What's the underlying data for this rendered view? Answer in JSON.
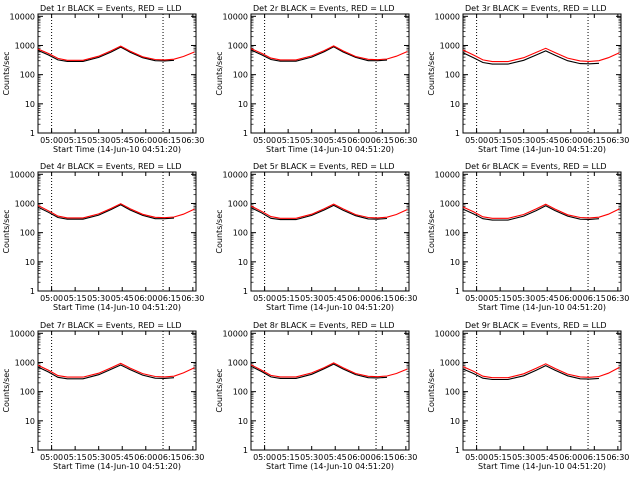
{
  "chart_data": [
    {
      "type": "line",
      "title": "Det 1r BLACK = Events, RED = LLD",
      "xlabel": "Start Time (14-Jun-10 04:51:20)",
      "ylabel": "Counts/sec",
      "yscale": "log",
      "ylim": [
        1,
        12000
      ],
      "xlim": [
        "04:51:20",
        "06:32:00"
      ],
      "x_ticks": [
        "05:00",
        "05:15",
        "05:30",
        "05:45",
        "06:00",
        "06:15",
        "06:30"
      ],
      "y_ticks": [
        "1",
        "10",
        "100",
        "1000",
        "10000"
      ],
      "vlines_dotted": [
        "05:00",
        "06:11"
      ],
      "x": [
        "04:51:20",
        "04:58:00",
        "05:04:00",
        "05:10:00",
        "05:20:00",
        "05:30:00",
        "05:38:00",
        "05:44:00",
        "05:50:00",
        "05:58:00",
        "06:06:00",
        "06:12:00",
        "06:18:00",
        "06:24:00",
        "06:31:00"
      ],
      "series": [
        {
          "name": "Events",
          "color": "#000000",
          "values": [
            680,
            470,
            320,
            285,
            285,
            390,
            600,
            880,
            590,
            380,
            300,
            295,
            310,
            null,
            null
          ]
        },
        {
          "name": "LLD",
          "color": "#ff0000",
          "values": [
            760,
            530,
            360,
            310,
            310,
            430,
            660,
            950,
            640,
            410,
            330,
            320,
            340,
            420,
            600
          ]
        }
      ]
    },
    {
      "type": "line",
      "title": "Det 2r BLACK = Events, RED = LLD",
      "xlabel": "Start Time (14-Jun-10 04:51:20)",
      "ylabel": "Counts/sec",
      "yscale": "log",
      "ylim": [
        1,
        12000
      ],
      "xlim": [
        "04:51:20",
        "06:32:00"
      ],
      "x_ticks": [
        "05:00",
        "05:15",
        "05:30",
        "05:45",
        "06:00",
        "06:15",
        "06:30"
      ],
      "y_ticks": [
        "1",
        "10",
        "100",
        "1000",
        "10000"
      ],
      "vlines_dotted": [
        "05:00",
        "06:11"
      ],
      "x": [
        "04:51:20",
        "04:58:00",
        "05:04:00",
        "05:10:00",
        "05:20:00",
        "05:30:00",
        "05:38:00",
        "05:44:00",
        "05:50:00",
        "05:58:00",
        "06:06:00",
        "06:12:00",
        "06:18:00",
        "06:24:00",
        "06:31:00"
      ],
      "series": [
        {
          "name": "Events",
          "color": "#000000",
          "values": [
            700,
            480,
            330,
            290,
            290,
            400,
            610,
            900,
            600,
            390,
            300,
            300,
            315,
            null,
            null
          ]
        },
        {
          "name": "LLD",
          "color": "#ff0000",
          "values": [
            780,
            540,
            370,
            320,
            320,
            440,
            670,
            970,
            650,
            420,
            335,
            325,
            345,
            430,
            620
          ]
        }
      ]
    },
    {
      "type": "line",
      "title": "Det 3r BLACK = Events, RED = LLD",
      "xlabel": "Start Time (14-Jun-10 04:51:20)",
      "ylabel": "Counts/sec",
      "yscale": "log",
      "ylim": [
        1,
        12000
      ],
      "xlim": [
        "04:51:20",
        "06:32:00"
      ],
      "x_ticks": [
        "05:00",
        "05:15",
        "05:30",
        "05:45",
        "06:00",
        "06:15",
        "06:30"
      ],
      "y_ticks": [
        "1",
        "10",
        "100",
        "1000",
        "10000"
      ],
      "vlines_dotted": [
        "05:00",
        "06:11"
      ],
      "x": [
        "04:51:20",
        "04:58:00",
        "05:04:00",
        "05:10:00",
        "05:20:00",
        "05:30:00",
        "05:38:00",
        "05:44:00",
        "05:50:00",
        "05:58:00",
        "06:06:00",
        "06:12:00",
        "06:18:00",
        "06:24:00",
        "06:31:00"
      ],
      "series": [
        {
          "name": "Events",
          "color": "#000000",
          "values": [
            560,
            380,
            260,
            230,
            230,
            310,
            470,
            650,
            460,
            300,
            240,
            235,
            245,
            null,
            null
          ]
        },
        {
          "name": "LLD",
          "color": "#ff0000",
          "values": [
            700,
            470,
            320,
            280,
            280,
            380,
            580,
            800,
            570,
            370,
            295,
            285,
            300,
            380,
            560
          ]
        }
      ]
    },
    {
      "type": "line",
      "title": "Det 4r BLACK = Events, RED = LLD",
      "xlabel": "Start Time (14-Jun-10 04:51:20)",
      "ylabel": "Counts/sec",
      "yscale": "log",
      "ylim": [
        1,
        12000
      ],
      "xlim": [
        "04:51:20",
        "06:32:00"
      ],
      "x_ticks": [
        "05:00",
        "05:15",
        "05:30",
        "05:45",
        "06:00",
        "06:15",
        "06:30"
      ],
      "y_ticks": [
        "1",
        "10",
        "100",
        "1000",
        "10000"
      ],
      "vlines_dotted": [
        "05:00",
        "06:11"
      ],
      "x": [
        "04:51:20",
        "04:58:00",
        "05:04:00",
        "05:10:00",
        "05:20:00",
        "05:30:00",
        "05:38:00",
        "05:44:00",
        "05:50:00",
        "05:58:00",
        "06:06:00",
        "06:12:00",
        "06:18:00",
        "06:24:00",
        "06:31:00"
      ],
      "series": [
        {
          "name": "Events",
          "color": "#000000",
          "values": [
            750,
            500,
            330,
            290,
            290,
            400,
            620,
            900,
            600,
            390,
            300,
            300,
            315,
            null,
            null
          ]
        },
        {
          "name": "LLD",
          "color": "#ff0000",
          "values": [
            850,
            560,
            370,
            320,
            320,
            440,
            680,
            980,
            660,
            425,
            335,
            325,
            345,
            430,
            640
          ]
        }
      ]
    },
    {
      "type": "line",
      "title": "Det 5r BLACK = Events, RED = LLD",
      "xlabel": "Start Time (14-Jun-10 04:51:20)",
      "ylabel": "Counts/sec",
      "yscale": "log",
      "ylim": [
        1,
        12000
      ],
      "xlim": [
        "04:51:20",
        "06:32:00"
      ],
      "x_ticks": [
        "05:00",
        "05:15",
        "05:30",
        "05:45",
        "06:00",
        "06:15",
        "06:30"
      ],
      "y_ticks": [
        "1",
        "10",
        "100",
        "1000",
        "10000"
      ],
      "vlines_dotted": [
        "05:00",
        "06:11"
      ],
      "x": [
        "04:51:20",
        "04:58:00",
        "05:04:00",
        "05:10:00",
        "05:20:00",
        "05:30:00",
        "05:38:00",
        "05:44:00",
        "05:50:00",
        "05:58:00",
        "06:06:00",
        "06:12:00",
        "06:18:00",
        "06:24:00",
        "06:31:00"
      ],
      "series": [
        {
          "name": "Events",
          "color": "#000000",
          "values": [
            720,
            480,
            310,
            280,
            280,
            390,
            600,
            860,
            590,
            380,
            295,
            290,
            305,
            null,
            null
          ]
        },
        {
          "name": "LLD",
          "color": "#ff0000",
          "values": [
            820,
            540,
            355,
            310,
            310,
            430,
            660,
            950,
            650,
            415,
            330,
            320,
            340,
            420,
            620
          ]
        }
      ]
    },
    {
      "type": "line",
      "title": "Det 6r BLACK = Events, RED = LLD",
      "xlabel": "Start Time (14-Jun-10 04:51:20)",
      "ylabel": "Counts/sec",
      "yscale": "log",
      "ylim": [
        1,
        12000
      ],
      "xlim": [
        "04:51:20",
        "06:32:00"
      ],
      "x_ticks": [
        "05:00",
        "05:15",
        "05:30",
        "05:45",
        "06:00",
        "06:15",
        "06:30"
      ],
      "y_ticks": [
        "1",
        "10",
        "100",
        "1000",
        "10000"
      ],
      "vlines_dotted": [
        "05:00",
        "06:11"
      ],
      "x": [
        "04:51:20",
        "04:58:00",
        "05:04:00",
        "05:10:00",
        "05:20:00",
        "05:30:00",
        "05:38:00",
        "05:44:00",
        "05:50:00",
        "05:58:00",
        "06:06:00",
        "06:12:00",
        "06:18:00",
        "06:24:00",
        "06:31:00"
      ],
      "series": [
        {
          "name": "Events",
          "color": "#000000",
          "values": [
            640,
            440,
            300,
            270,
            270,
            370,
            570,
            840,
            570,
            370,
            290,
            285,
            300,
            null,
            null
          ]
        },
        {
          "name": "LLD",
          "color": "#ff0000",
          "values": [
            760,
            520,
            350,
            310,
            310,
            420,
            650,
            940,
            640,
            410,
            330,
            320,
            340,
            430,
            650
          ]
        }
      ]
    },
    {
      "type": "line",
      "title": "Det 7r BLACK = Events, RED = LLD",
      "xlabel": "Start Time (14-Jun-10 04:51:20)",
      "ylabel": "Counts/sec",
      "yscale": "log",
      "ylim": [
        1,
        12000
      ],
      "xlim": [
        "04:51:20",
        "06:32:00"
      ],
      "x_ticks": [
        "05:00",
        "05:15",
        "05:30",
        "05:45",
        "06:00",
        "06:15",
        "06:30"
      ],
      "y_ticks": [
        "1",
        "10",
        "100",
        "1000",
        "10000"
      ],
      "vlines_dotted": [
        "05:00",
        "06:11"
      ],
      "x": [
        "04:51:20",
        "04:58:00",
        "05:04:00",
        "05:10:00",
        "05:20:00",
        "05:30:00",
        "05:38:00",
        "05:44:00",
        "05:50:00",
        "05:58:00",
        "06:06:00",
        "06:12:00",
        "06:18:00",
        "06:24:00",
        "06:31:00"
      ],
      "series": [
        {
          "name": "Events",
          "color": "#000000",
          "values": [
            700,
            470,
            310,
            275,
            275,
            380,
            590,
            820,
            570,
            370,
            290,
            285,
            300,
            null,
            null
          ]
        },
        {
          "name": "LLD",
          "color": "#ff0000",
          "values": [
            800,
            540,
            355,
            315,
            315,
            430,
            660,
            930,
            640,
            415,
            330,
            320,
            340,
            440,
            660
          ]
        }
      ]
    },
    {
      "type": "line",
      "title": "Det 8r BLACK = Events, RED = LLD",
      "xlabel": "Start Time (14-Jun-10 04:51:20)",
      "ylabel": "Counts/sec",
      "yscale": "log",
      "ylim": [
        1,
        12000
      ],
      "xlim": [
        "04:51:20",
        "06:32:00"
      ],
      "x_ticks": [
        "05:00",
        "05:15",
        "05:30",
        "05:45",
        "06:00",
        "06:15",
        "06:30"
      ],
      "y_ticks": [
        "1",
        "10",
        "100",
        "1000",
        "10000"
      ],
      "vlines_dotted": [
        "05:00",
        "06:11"
      ],
      "x": [
        "04:51:20",
        "04:58:00",
        "05:04:00",
        "05:10:00",
        "05:20:00",
        "05:30:00",
        "05:38:00",
        "05:44:00",
        "05:50:00",
        "05:58:00",
        "06:06:00",
        "06:12:00",
        "06:18:00",
        "06:24:00",
        "06:31:00"
      ],
      "series": [
        {
          "name": "Events",
          "color": "#000000",
          "values": [
            740,
            490,
            320,
            285,
            285,
            395,
            610,
            880,
            600,
            385,
            300,
            295,
            310,
            null,
            null
          ]
        },
        {
          "name": "LLD",
          "color": "#ff0000",
          "values": [
            830,
            550,
            360,
            320,
            320,
            440,
            670,
            970,
            660,
            420,
            335,
            325,
            345,
            420,
            600
          ]
        }
      ]
    },
    {
      "type": "line",
      "title": "Det 9r BLACK = Events, RED = LLD",
      "xlabel": "Start Time (14-Jun-10 04:51:20)",
      "ylabel": "Counts/sec",
      "yscale": "log",
      "ylim": [
        1,
        12000
      ],
      "xlim": [
        "04:51:20",
        "06:32:00"
      ],
      "x_ticks": [
        "05:00",
        "05:15",
        "05:30",
        "05:45",
        "06:00",
        "06:15",
        "06:30"
      ],
      "y_ticks": [
        "1",
        "10",
        "100",
        "1000",
        "10000"
      ],
      "vlines_dotted": [
        "05:00",
        "06:11"
      ],
      "x": [
        "04:51:20",
        "04:58:00",
        "05:04:00",
        "05:10:00",
        "05:20:00",
        "05:30:00",
        "05:38:00",
        "05:44:00",
        "05:50:00",
        "05:58:00",
        "06:06:00",
        "06:12:00",
        "06:18:00",
        "06:24:00",
        "06:31:00"
      ],
      "series": [
        {
          "name": "Events",
          "color": "#000000",
          "values": [
            600,
            420,
            290,
            260,
            260,
            350,
            540,
            780,
            540,
            350,
            275,
            270,
            285,
            null,
            null
          ]
        },
        {
          "name": "LLD",
          "color": "#ff0000",
          "values": [
            720,
            500,
            340,
            300,
            300,
            410,
            630,
            900,
            620,
            400,
            320,
            310,
            330,
            430,
            680
          ]
        }
      ]
    }
  ]
}
